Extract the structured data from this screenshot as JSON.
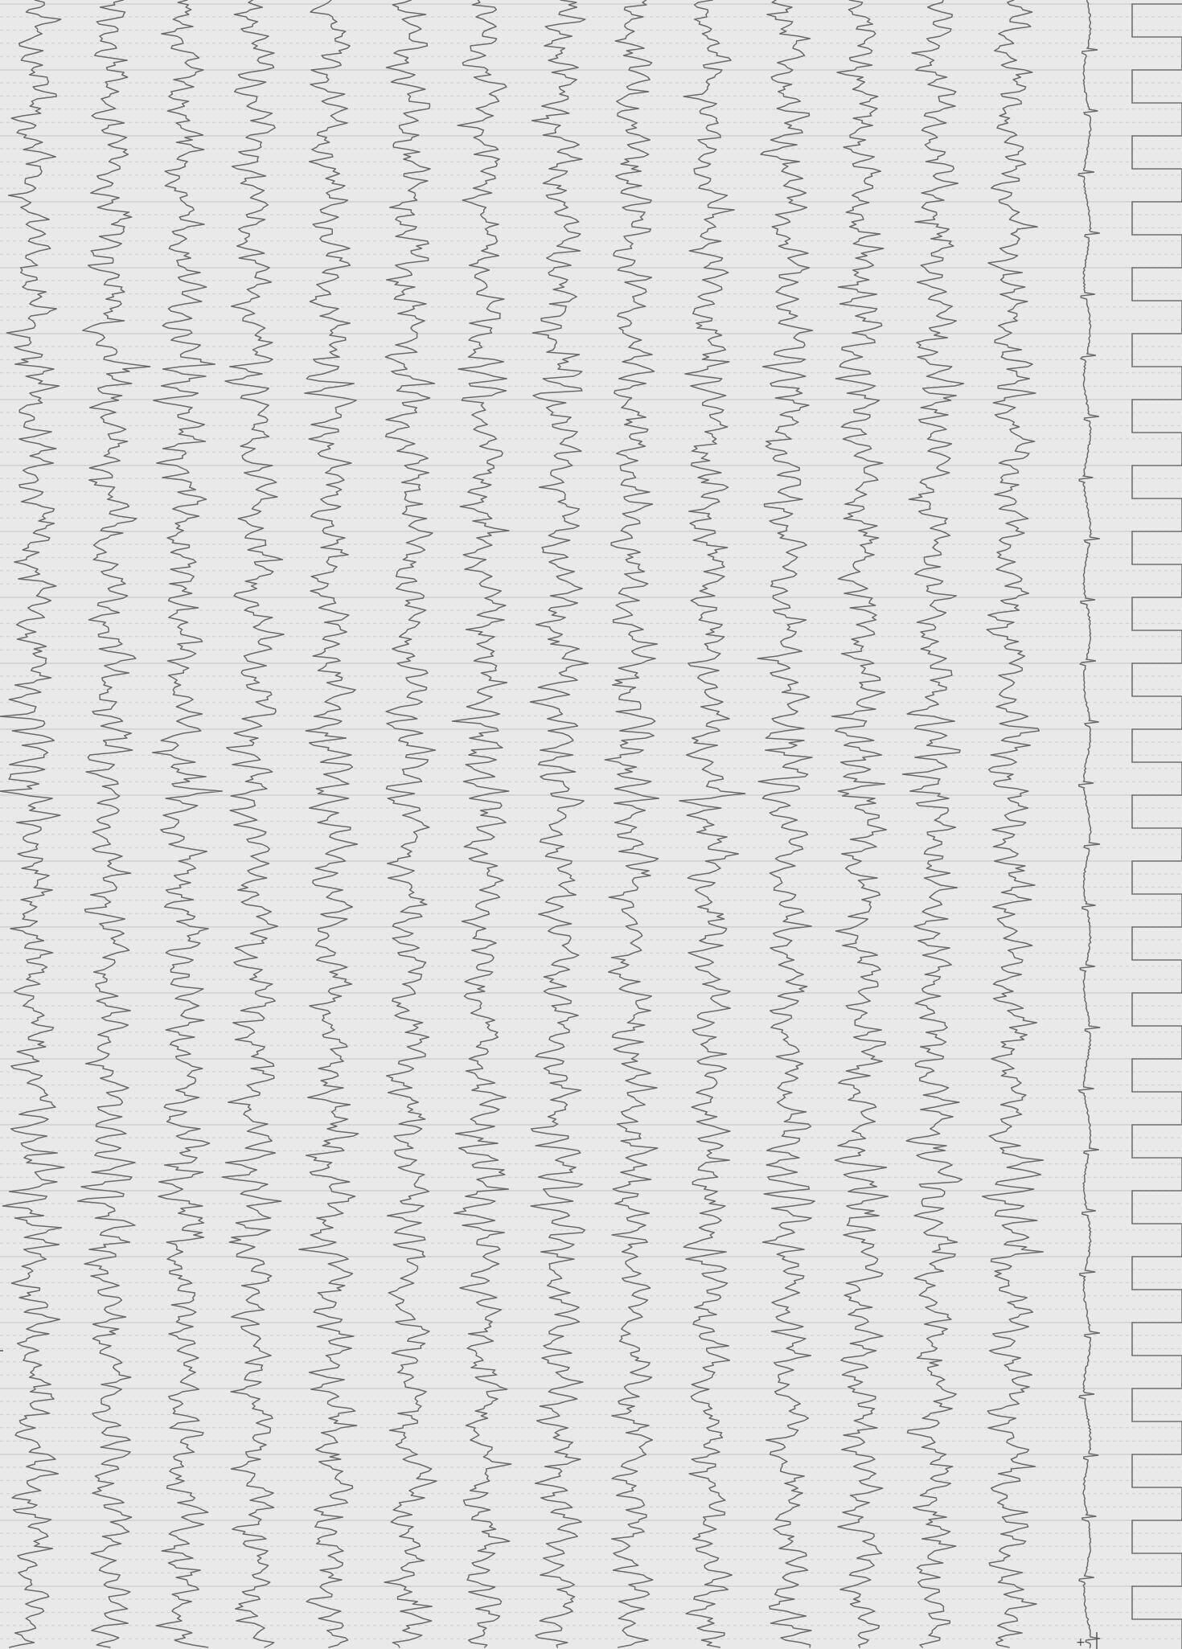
{
  "recording": {
    "channel_count": 14,
    "paper_color": "#e9e9e9",
    "trace_color": "#6a6a6a",
    "grid_color": "#c4c4c4",
    "has_ecg_channel": true,
    "has_time_marker_channel": true
  },
  "bottom_marks": {
    "plus_sign": "+"
  }
}
